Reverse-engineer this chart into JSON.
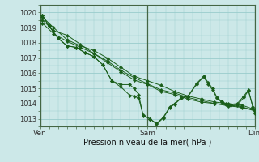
{
  "title": "Pression niveau de la mer( hPa )",
  "xlim": [
    0,
    48
  ],
  "ylim": [
    1012.5,
    1020.5
  ],
  "yticks": [
    1013,
    1014,
    1015,
    1016,
    1017,
    1018,
    1019,
    1020
  ],
  "xtick_positions": [
    0,
    24,
    48
  ],
  "xtick_labels": [
    "Ven",
    "Sam",
    "Dim"
  ],
  "bg_color": "#cce8e8",
  "grid_color": "#99cccc",
  "line_color": "#1a5e1a",
  "marker": "D",
  "marker_size": 2.2,
  "linewidth": 0.7,
  "series": [
    [
      0.5,
      1019.7,
      3.0,
      1019.0,
      6.0,
      1018.2,
      9.0,
      1017.8,
      12.0,
      1017.5,
      15.0,
      1017.0,
      18.0,
      1016.4,
      21.0,
      1015.8,
      24.0,
      1015.5,
      27.0,
      1015.2,
      30.0,
      1014.8,
      33.0,
      1014.5,
      36.0,
      1014.3,
      39.0,
      1014.1,
      42.0,
      1014.0,
      45.0,
      1013.9,
      48.0,
      1013.6
    ],
    [
      0.5,
      1019.5,
      3.0,
      1018.8,
      6.0,
      1018.5,
      9.0,
      1017.9,
      12.0,
      1017.3,
      15.0,
      1016.8,
      18.0,
      1016.2,
      21.0,
      1015.7,
      24.0,
      1015.3,
      27.0,
      1014.9,
      30.0,
      1014.7,
      33.0,
      1014.4,
      36.0,
      1014.2,
      39.0,
      1014.0,
      42.0,
      1013.9,
      45.0,
      1013.8,
      48.0,
      1013.5
    ],
    [
      0.5,
      1019.3,
      3.0,
      1018.6,
      6.0,
      1018.1,
      9.0,
      1017.7,
      12.0,
      1017.3,
      15.0,
      1016.7,
      18.0,
      1016.1,
      21.0,
      1015.55,
      24.0,
      1015.25,
      27.0,
      1014.8,
      30.0,
      1014.6,
      33.0,
      1014.3,
      36.0,
      1014.1,
      39.0,
      1014.0,
      42.0,
      1013.85,
      45.0,
      1013.75,
      48.0,
      1013.55
    ],
    [
      0.5,
      1019.8,
      2.0,
      1019.1,
      4.0,
      1018.3,
      6.0,
      1017.8,
      8.0,
      1017.7,
      10.0,
      1017.35,
      12.0,
      1017.1,
      14.0,
      1016.55,
      16.0,
      1015.5,
      18.0,
      1015.25,
      20.0,
      1015.25,
      21.0,
      1015.0,
      22.0,
      1014.6,
      23.0,
      1013.2,
      24.5,
      1013.0,
      26.0,
      1012.7,
      27.5,
      1013.1,
      29.0,
      1013.8,
      30.0,
      1014.0,
      31.5,
      1014.4,
      33.0,
      1014.5,
      35.0,
      1015.35,
      36.5,
      1015.8,
      37.5,
      1015.4,
      38.5,
      1015.0,
      39.5,
      1014.4,
      40.5,
      1014.15,
      41.5,
      1014.0,
      42.5,
      1013.95,
      44.0,
      1014.0,
      45.5,
      1014.5,
      46.5,
      1014.9,
      47.5,
      1013.8,
      48.0,
      1013.4
    ],
    [
      0.5,
      1019.8,
      2.0,
      1019.1,
      4.0,
      1018.3,
      6.0,
      1017.8,
      8.0,
      1017.7,
      10.0,
      1017.35,
      12.0,
      1017.1,
      14.0,
      1016.55,
      16.0,
      1015.5,
      18.0,
      1015.1,
      20.0,
      1014.55,
      21.0,
      1014.5,
      22.0,
      1014.35,
      23.0,
      1013.25,
      24.5,
      1013.0,
      26.0,
      1012.65,
      27.5,
      1013.05,
      29.0,
      1013.75,
      30.0,
      1013.95,
      31.5,
      1014.35,
      33.0,
      1014.45,
      35.0,
      1015.3,
      36.5,
      1015.75,
      37.5,
      1015.3,
      38.5,
      1014.9,
      39.5,
      1014.35,
      40.5,
      1014.1,
      41.5,
      1013.95,
      42.5,
      1013.9,
      44.0,
      1013.9,
      45.5,
      1014.4,
      46.5,
      1014.85,
      47.5,
      1013.75,
      48.0,
      1013.35
    ]
  ]
}
